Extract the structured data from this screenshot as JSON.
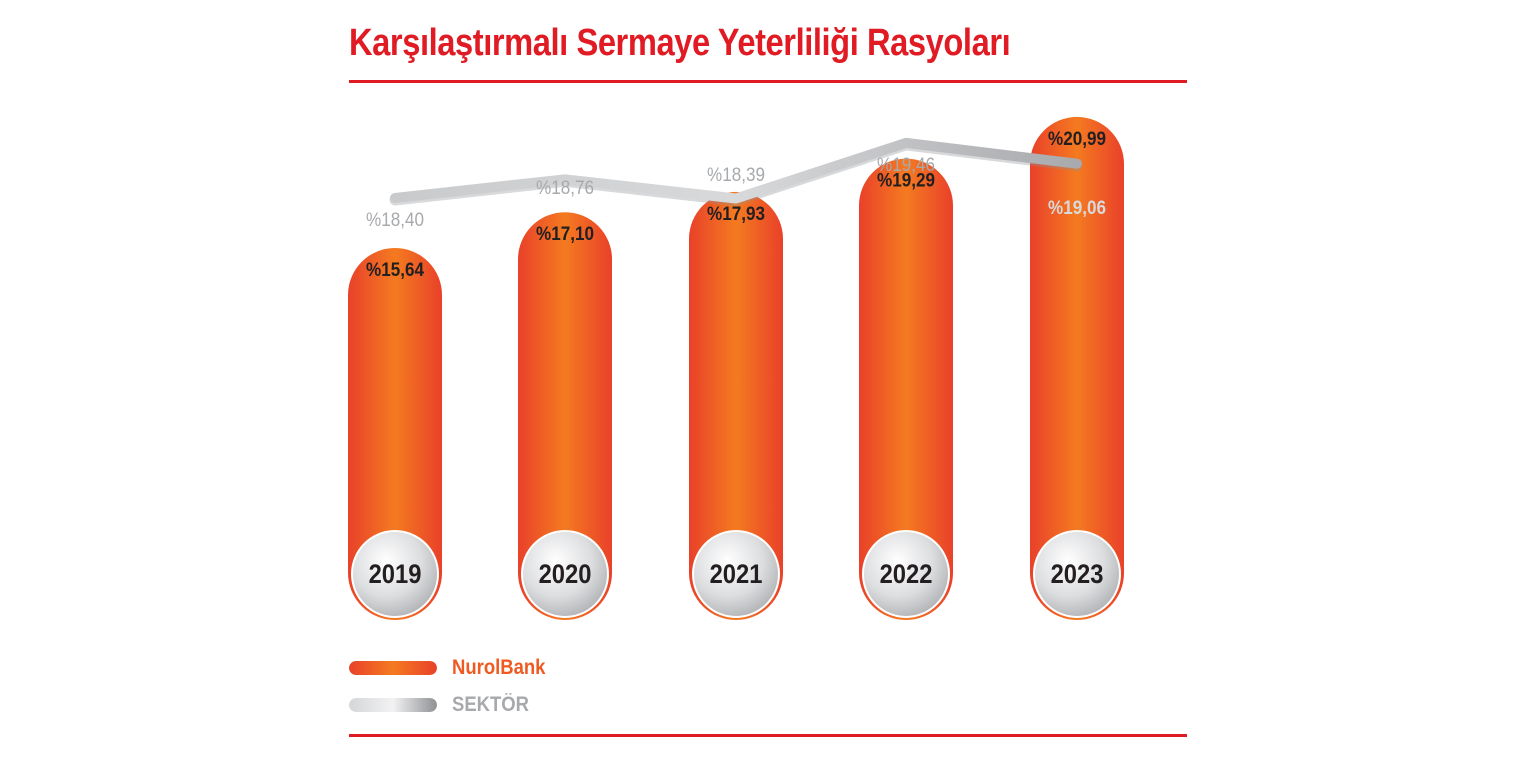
{
  "title": "Karşılaştırmalı Sermaye Yeterliliği Rasyoları",
  "colors": {
    "accent": "#e01b24",
    "bank_orange": "#f47a20",
    "bank_orange_edge": "#e9412a",
    "sector_gray": "#b3b4b6",
    "bank_label": "#231f20",
    "sector_label": "#a7a9ac"
  },
  "legend": {
    "bank": "NurolBank",
    "sector": "SEKTÖR"
  },
  "chart_data": {
    "type": "bar",
    "categories": [
      "2019",
      "2020",
      "2021",
      "2022",
      "2023"
    ],
    "series": [
      {
        "name": "NurolBank",
        "type": "bar",
        "values": [
          15.64,
          17.1,
          17.93,
          19.29,
          20.99
        ],
        "labels": [
          "%15,64",
          "%17,10",
          "%17,93",
          "%19,29",
          "%20,99"
        ]
      },
      {
        "name": "SEKTÖR",
        "type": "line",
        "values": [
          18.4,
          18.76,
          18.39,
          19.46,
          19.06
        ],
        "labels": [
          "%18,40",
          "%18,76",
          "%18,39",
          "%19,46",
          "%19,06"
        ]
      }
    ],
    "legend_position": "bottom-left",
    "grid": false
  }
}
